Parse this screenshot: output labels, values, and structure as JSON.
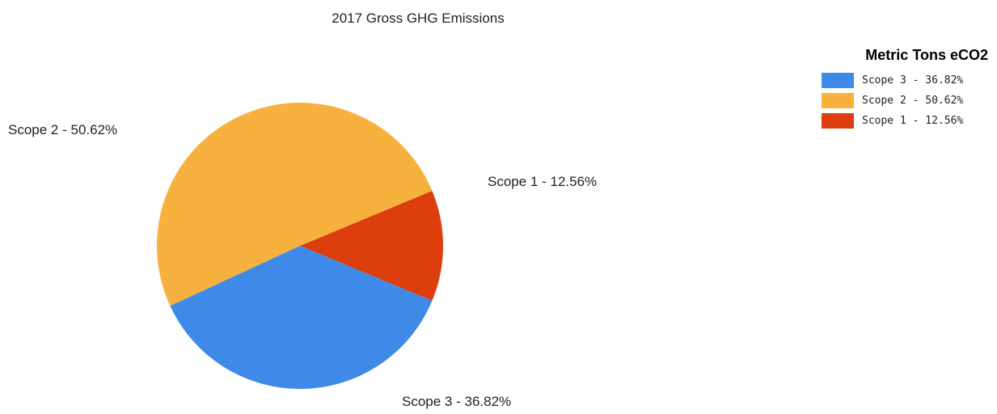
{
  "chart_data": {
    "type": "pie",
    "title": "2017 Gross GHG Emissions",
    "legend": {
      "title": "Metric Tons eCO2",
      "placement": "top-right"
    },
    "slices": [
      {
        "label": "Scope 1 - 12.56%",
        "value": 12.56,
        "color": "#dc3e0e"
      },
      {
        "label": "Scope 2 - 50.62%",
        "value": 50.62,
        "color": "#f7b13f"
      },
      {
        "label": "Scope 3 - 36.82%",
        "value": 36.82,
        "color": "#3f8ae8"
      }
    ],
    "legend_order": [
      2,
      1,
      0
    ]
  }
}
